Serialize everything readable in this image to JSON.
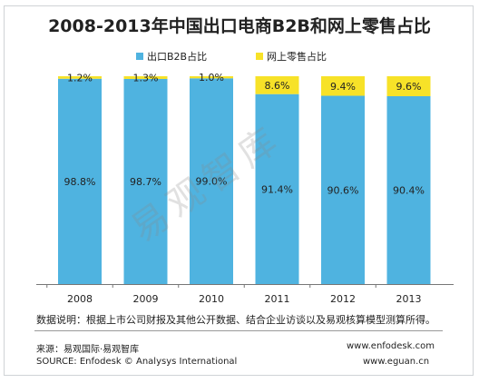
{
  "title": "2008-2013年中国出口电商B2B和网上零售占比",
  "watermark": "易观智库",
  "footnote": "数据说明：根据上市公司财报及其他公开数据、结合企业访谈以及易观核算模型测算所得。",
  "source_cn": "来源：易观国际·易观智库",
  "source_en": "SOURCE: Enfodesk © Analysys International",
  "url1": "www.enfodesk.com",
  "url2": "www.eguan.cn",
  "chart_data": {
    "type": "bar",
    "stacked": true,
    "title": "2008-2013年中国出口电商B2B和网上零售占比",
    "categories": [
      "2008",
      "2009",
      "2010",
      "2011",
      "2012",
      "2013"
    ],
    "series": [
      {
        "name": "出口B2B占比",
        "color": "#4fb3e0",
        "values": [
          98.8,
          98.7,
          99.0,
          91.4,
          90.6,
          90.4
        ],
        "labels": [
          "98.8%",
          "98.7%",
          "99.0%",
          "91.4%",
          "90.6%",
          "90.4%"
        ]
      },
      {
        "name": "网上零售占比",
        "color": "#f7e228",
        "values": [
          1.2,
          1.3,
          1.0,
          8.6,
          9.4,
          9.6
        ],
        "labels": [
          "1.2%",
          "1.3%",
          "1.0%",
          "8.6%",
          "9.4%",
          "9.6%"
        ]
      }
    ],
    "ylim": [
      0,
      100
    ],
    "legend": "top-center",
    "grid": false
  }
}
